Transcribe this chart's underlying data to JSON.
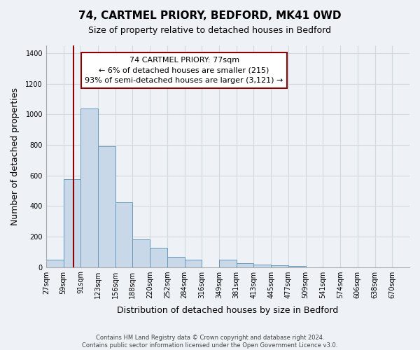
{
  "title": "74, CARTMEL PRIORY, BEDFORD, MK41 0WD",
  "subtitle": "Size of property relative to detached houses in Bedford",
  "xlabel": "Distribution of detached houses by size in Bedford",
  "ylabel": "Number of detached properties",
  "footer_line1": "Contains HM Land Registry data © Crown copyright and database right 2024.",
  "footer_line2": "Contains public sector information licensed under the Open Government Licence v3.0.",
  "bin_labels": [
    "27sqm",
    "59sqm",
    "91sqm",
    "123sqm",
    "156sqm",
    "188sqm",
    "220sqm",
    "252sqm",
    "284sqm",
    "316sqm",
    "349sqm",
    "381sqm",
    "413sqm",
    "445sqm",
    "477sqm",
    "509sqm",
    "541sqm",
    "574sqm",
    "606sqm",
    "638sqm",
    "670sqm"
  ],
  "bar_heights": [
    50,
    575,
    1040,
    790,
    425,
    180,
    125,
    65,
    50,
    0,
    50,
    25,
    15,
    10,
    5,
    0,
    0,
    0,
    0,
    0,
    0
  ],
  "bar_color": "#c8d8e8",
  "bar_edge_color": "#6699bb",
  "ylim": [
    0,
    1450
  ],
  "yticks": [
    0,
    200,
    400,
    600,
    800,
    1000,
    1200,
    1400
  ],
  "red_line_x": 1.57,
  "annotation_title": "74 CARTMEL PRIORY: 77sqm",
  "annotation_line1": "← 6% of detached houses are smaller (215)",
  "annotation_line2": "93% of semi-detached houses are larger (3,121) →",
  "background_color": "#eef2f6",
  "plot_background": "#eef2f6",
  "grid_color": "#d0d8e0"
}
